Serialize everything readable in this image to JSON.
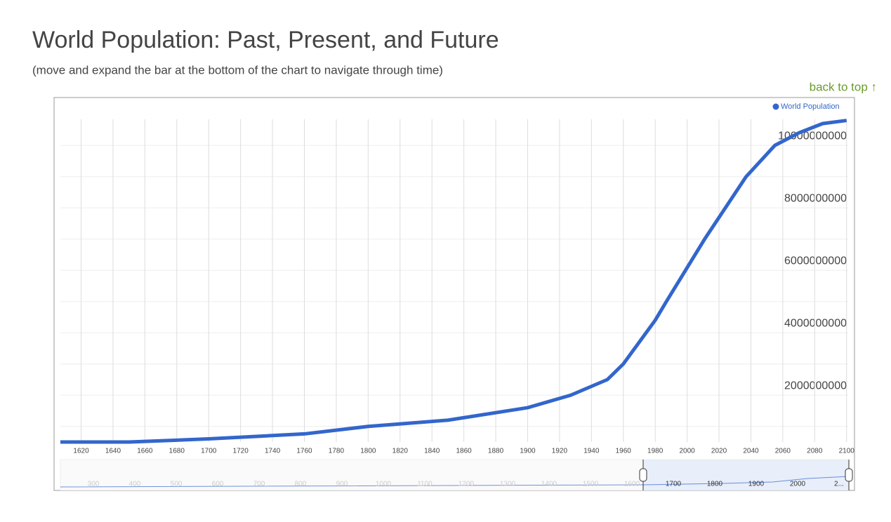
{
  "page": {
    "back_link": "back to top ↑"
  },
  "chart_data": {
    "type": "line",
    "title": "World Population: Past, Present, and Future",
    "subtitle": "(move and expand the bar at the bottom of the chart to navigate through time)",
    "x": [
      1607,
      1650,
      1700,
      1760,
      1800,
      1850,
      1900,
      1927,
      1950,
      1960,
      1970,
      1980,
      1987,
      1999,
      2011,
      2024,
      2037,
      2055,
      2070,
      2085,
      2100
    ],
    "series": [
      {
        "name": "World Population",
        "color": "#3366cc",
        "values": [
          500000000,
          500000000,
          600000000,
          760000000,
          1000000000,
          1200000000,
          1600000000,
          2000000000,
          2500000000,
          3000000000,
          3700000000,
          4400000000,
          5000000000,
          6000000000,
          7000000000,
          8000000000,
          9000000000,
          10000000000,
          10400000000,
          10700000000,
          10800000000
        ]
      }
    ],
    "xlim": [
      1607,
      2101
    ],
    "xticks": [
      1620,
      1640,
      1660,
      1680,
      1700,
      1720,
      1740,
      1760,
      1780,
      1800,
      1820,
      1840,
      1860,
      1880,
      1900,
      1920,
      1940,
      1960,
      1980,
      2000,
      2020,
      2040,
      2060,
      2080,
      2100
    ],
    "ylim": [
      500000000,
      10950000000
    ],
    "yticks": [
      2000000000,
      4000000000,
      6000000000,
      8000000000,
      10000000000
    ],
    "y_minor_ticks": [
      1000000000,
      3000000000,
      5000000000,
      7000000000,
      9000000000
    ],
    "grid": true,
    "legend": "top-right",
    "navigator_labels": [
      "300",
      "400",
      "500",
      "600",
      "700",
      "800",
      "900",
      "1000",
      "1100",
      "1200",
      "1300",
      "1400",
      "1500",
      "1600",
      "1700",
      "1800",
      "1900",
      "2000",
      "2..."
    ]
  }
}
